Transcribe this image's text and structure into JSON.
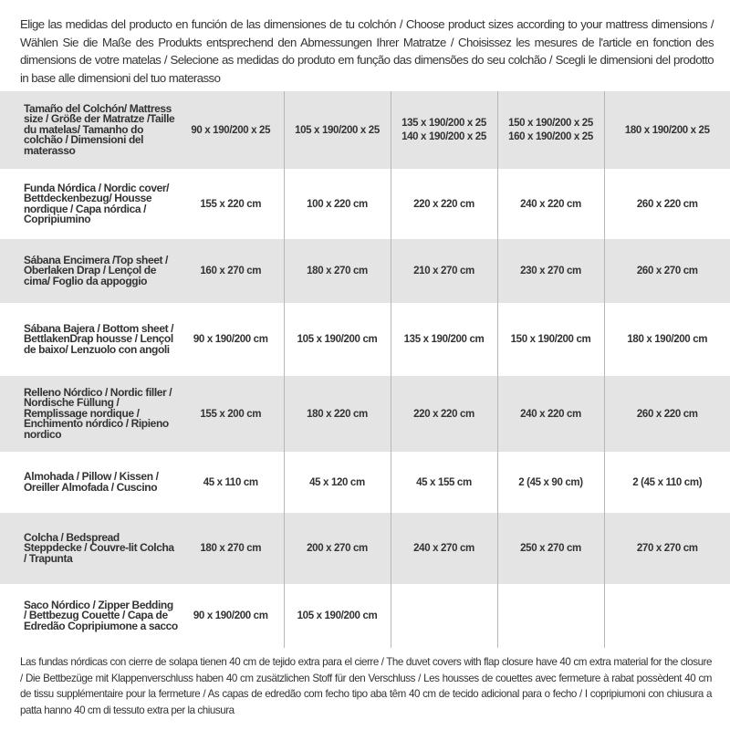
{
  "intro": "Elige las medidas del producto en función de las dimensiones de tu colchón / Choose product sizes according to your mattress dimensions / Wählen Sie die Maße des Produkts entsprechend den Abmessungen Ihrer Matratze / Choisissez les mesures de l'article en fonction des dimensions de votre matelas / Selecione as medidas do produto em função das dimensões do seu colchão / Scegli le dimensioni del prodotto in base alle dimensioni del tuo materasso",
  "rows": [
    {
      "label": "Tamaño del Colchón/ Mattress size / Größe der Matratze /Taille du matelas/ Tamanho do colchão / Dimensioni del materasso",
      "cells": [
        "90 x 190/200 x 25",
        "105 x 190/200 x 25",
        "135 x 190/200 x 25\n140 x 190/200 x 25",
        "150 x 190/200 x 25\n160 x 190/200 x 25",
        "180 x 190/200 x 25"
      ]
    },
    {
      "label": "Funda Nórdica / Nordic cover/ Bettdeckenbezug/ Housse nordique / Capa nórdica / Copripiumino",
      "cells": [
        "155 x 220 cm",
        "100 x 220 cm",
        "220 x 220 cm",
        "240 x 220 cm",
        "260 x 220 cm"
      ]
    },
    {
      "label": "Sábana Encimera /Top sheet / Oberlaken Drap / Lençol de cima/ Foglio da appoggio",
      "cells": [
        "160 x 270 cm",
        "180 x 270 cm",
        "210 x 270 cm",
        "230 x 270 cm",
        "260 x 270 cm"
      ]
    },
    {
      "label": "Sábana Bajera / Bottom sheet / BettlakenDrap housse / Lençol de baixo/ Lenzuolo con angoli",
      "cells": [
        "90 x 190/200 cm",
        "105 x 190/200 cm",
        "135 x 190/200 cm",
        "150 x 190/200 cm",
        "180 x 190/200 cm"
      ]
    },
    {
      "label": "Relleno Nórdico / Nordic filler / Nordische Füllung / Remplissage nordique / Enchimento nórdico / Ripieno nordico",
      "cells": [
        "155 x 200 cm",
        "180 x 220 cm",
        "220 x 220 cm",
        "240 x 220 cm",
        "260 x 220 cm"
      ]
    },
    {
      "label": "Almohada / Pillow / Kissen / Oreiller Almofada / Cuscino",
      "cells": [
        "45 x 110 cm",
        "45 x 120 cm",
        "45 x 155 cm",
        "2 (45 x 90 cm)",
        "2 (45 x 110 cm)"
      ]
    },
    {
      "label": "Colcha / Bedspread Steppdecke / Couvre-lit Colcha / Trapunta",
      "cells": [
        "180 x 270 cm",
        "200 x 270 cm",
        "240 x 270 cm",
        "250 x 270 cm",
        "270 x 270 cm"
      ]
    },
    {
      "label": "Saco Nórdico / Zipper Bedding / Bettbezug Couette / Capa de Edredão Copripiumone a sacco",
      "cells": [
        "90 x 190/200 cm",
        "105 x 190/200 cm",
        "",
        "",
        ""
      ]
    }
  ],
  "note": "Las fundas nórdicas con cierre de solapa tienen 40 cm de tejido extra para el cierre / The duvet covers with flap closure have 40 cm extra material for the closure / Die Bettbezüge mit Klappenverschluss haben 40 cm zusätzlichen Stoff für den Verschluss / Les housses de couettes avec fermeture à rabat possèdent 40 cm de tissu supplémentaire pour la fermeture / As capas de edredão com fecho tipo aba têm 40 cm de tecido adicional para o fecho / I copripiumoni con chiusura a patta hanno 40 cm di tessuto extra per la chiusura",
  "colors": {
    "row_gray": "#e4e4e4",
    "row_white": "#ffffff",
    "text": "#333333"
  }
}
